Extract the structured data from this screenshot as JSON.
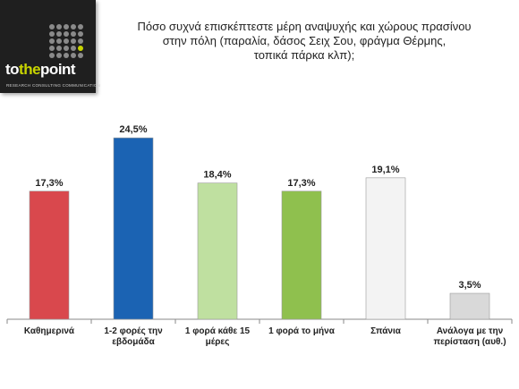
{
  "logo": {
    "brand_prefix": "to",
    "brand_emphasis": "the",
    "brand_suffix": "point",
    "tagline": "RESEARCH CONSULTING COMMUNICATION"
  },
  "colors": {
    "background": "#ffffff",
    "axis": "#888888",
    "logo_bg": "#1f1f1f",
    "logo_accent": "#c8d400"
  },
  "chart_data": {
    "type": "bar",
    "title": [
      "Πόσο συχνά επισκέπτεστε μέρη αναψυχής και χώρους πρασίνου",
      "στην πόλη (παραλία, δάσος Σειχ Σου, φράγμα Θέρμης,",
      "τοπικά πάρκα κλπ);"
    ],
    "categories": [
      [
        "Καθημερινά"
      ],
      [
        "1-2 φορές την",
        "εβδομάδα"
      ],
      [
        "1 φορά κάθε 15",
        "μέρες"
      ],
      [
        "1 φορά το μήνα"
      ],
      [
        "Σπάνια"
      ],
      [
        "Ανάλογα με την",
        "περίσταση (αυθ.)"
      ]
    ],
    "values": [
      17.3,
      24.5,
      18.4,
      17.3,
      19.1,
      3.5
    ],
    "value_labels": [
      "17,3%",
      "24,5%",
      "18,4%",
      "17,3%",
      "19,1%",
      "3,5%"
    ],
    "bar_colors": [
      "#d9484d",
      "#1b63b3",
      "#bfe0a0",
      "#8fc04e",
      "#f3f3f3",
      "#d9d9d9"
    ],
    "ylim": [
      0,
      25
    ],
    "grid": false,
    "legend": "none"
  }
}
